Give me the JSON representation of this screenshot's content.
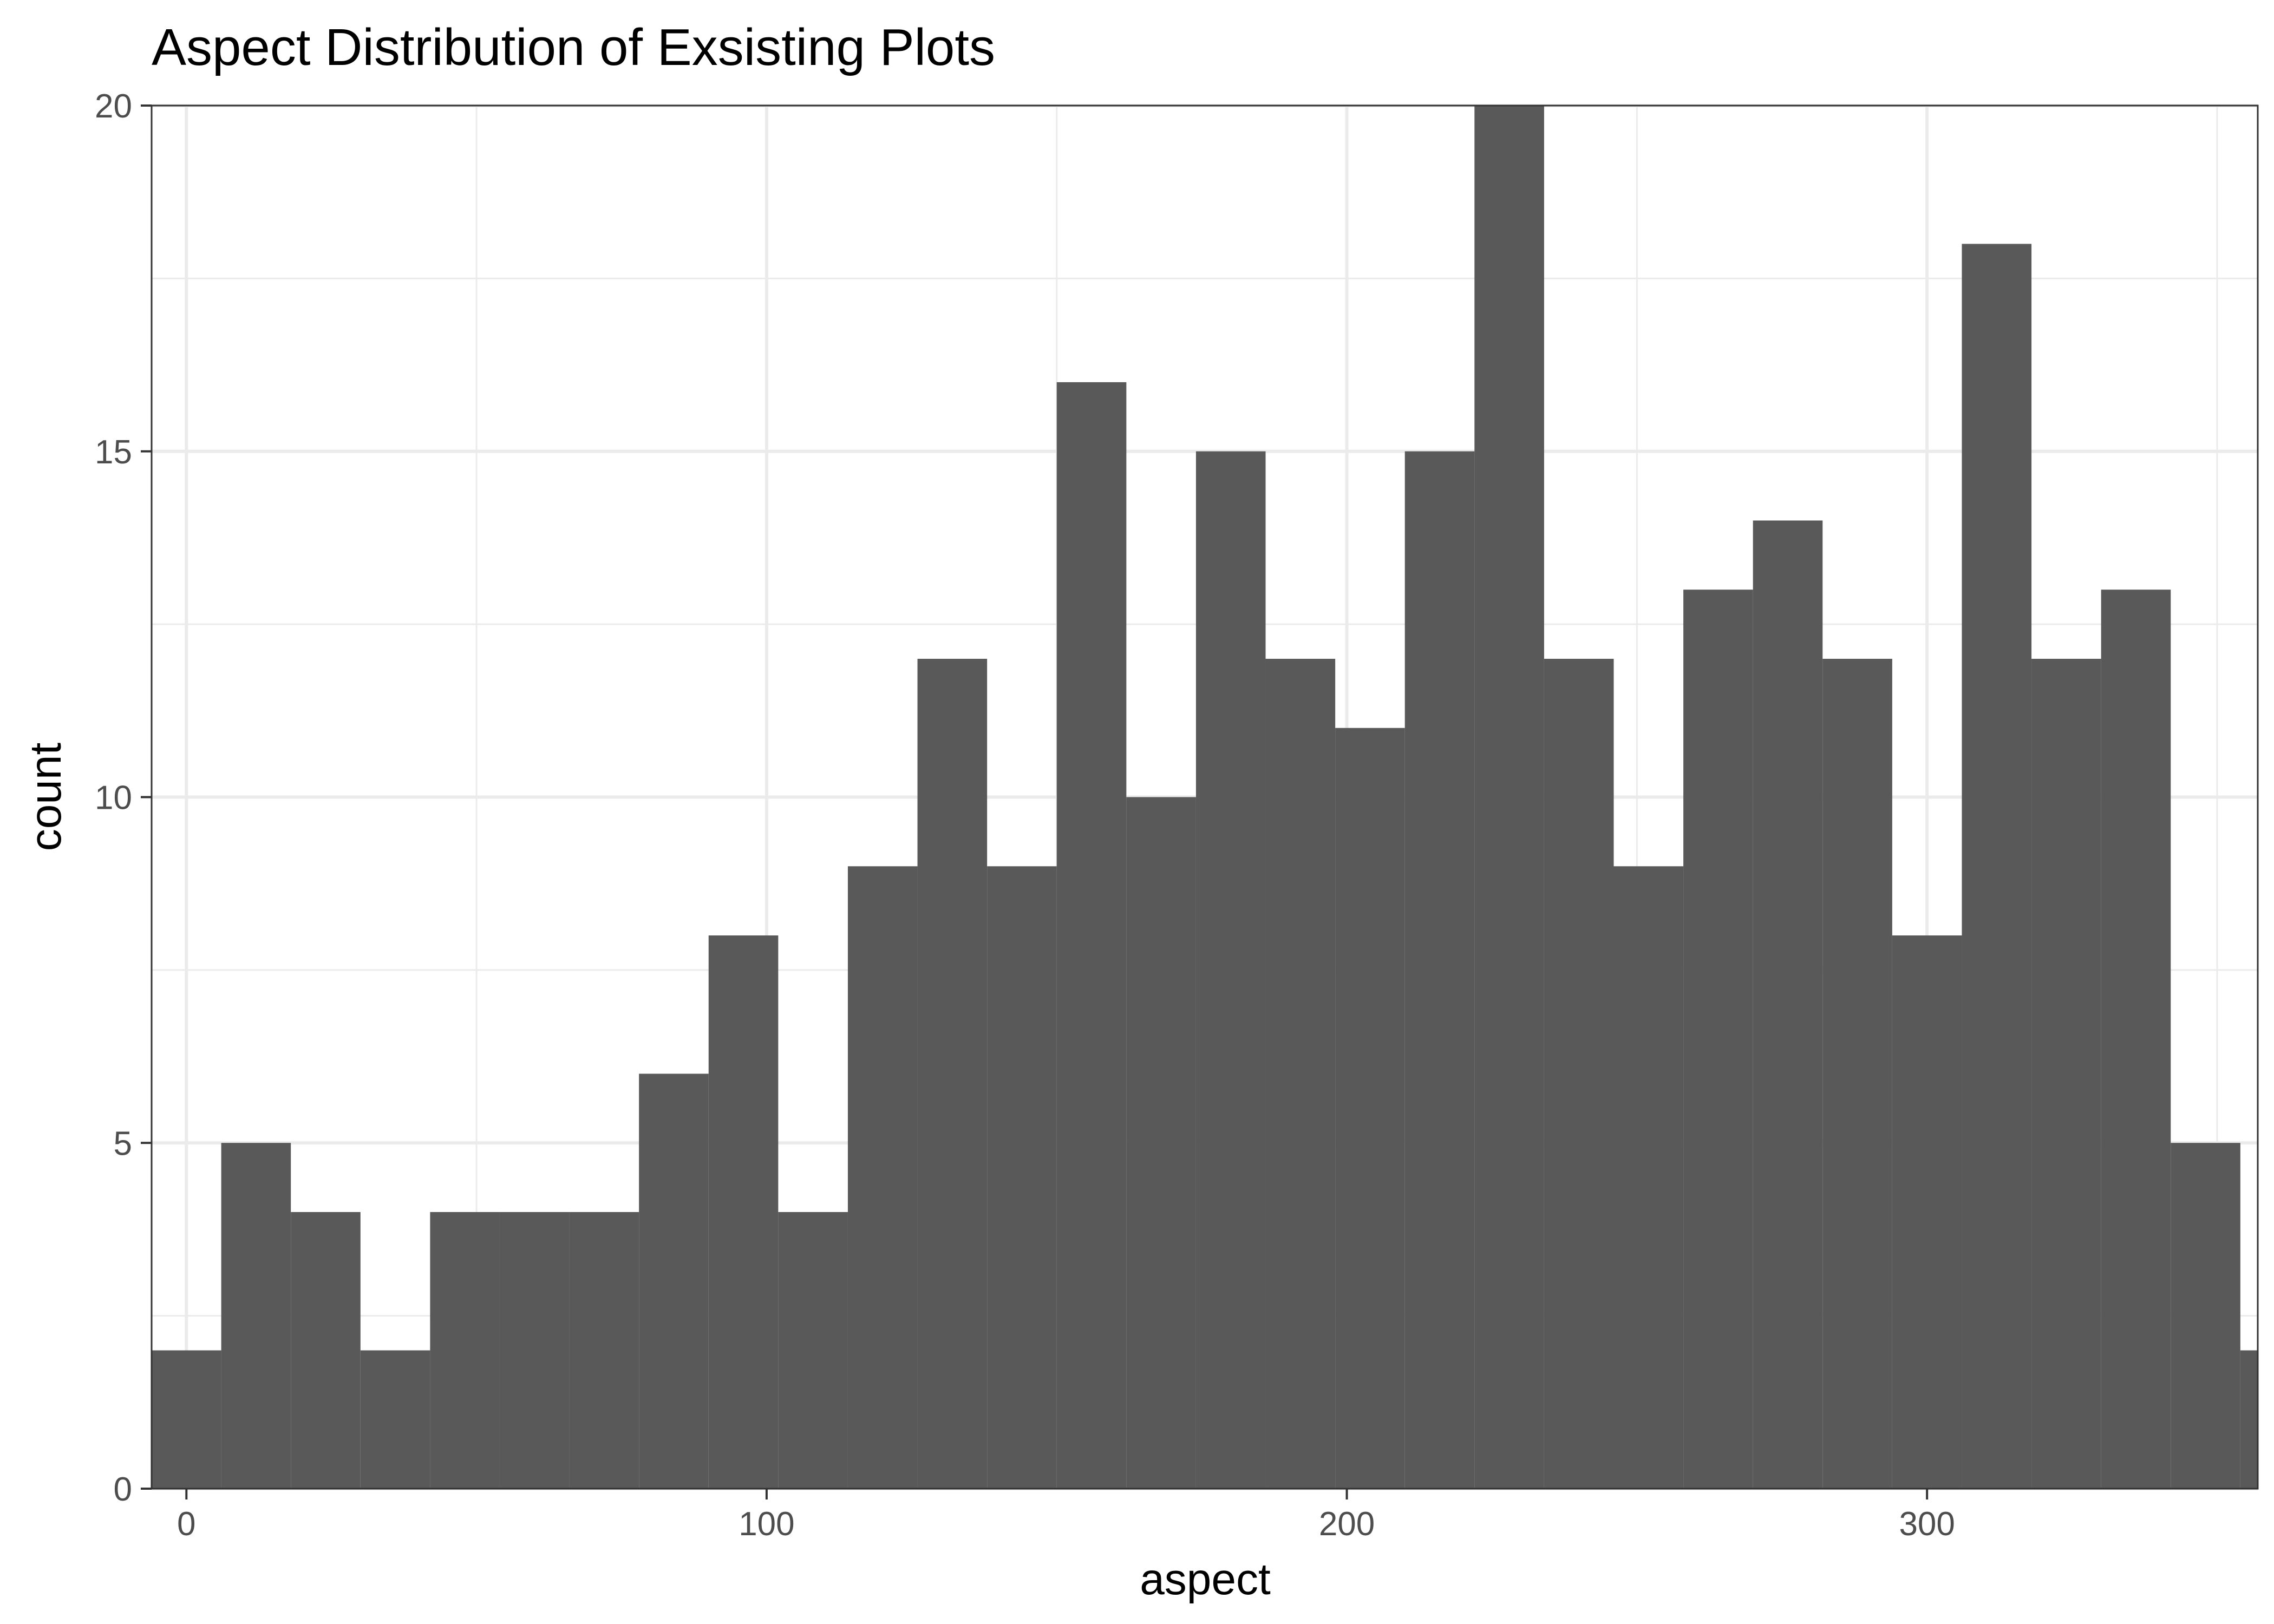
{
  "chart_data": {
    "type": "bar",
    "title": "Aspect Distribution of Exsisting Plots",
    "xlabel": "aspect",
    "ylabel": "count",
    "bin_width": 12,
    "x": [
      0,
      12,
      24,
      36,
      48,
      60,
      72,
      84,
      96,
      108,
      120,
      132,
      144,
      156,
      168,
      180,
      192,
      204,
      216,
      228,
      240,
      252,
      264,
      276,
      288,
      300,
      312,
      324,
      336,
      348,
      360
    ],
    "values": [
      2,
      5,
      4,
      2,
      4,
      4,
      4,
      6,
      8,
      4,
      9,
      12,
      9,
      16,
      10,
      15,
      12,
      11,
      15,
      20,
      12,
      9,
      13,
      14,
      12,
      8,
      18,
      12,
      13,
      5,
      2
    ],
    "xlim": [
      -6,
      357
    ],
    "ylim": [
      0,
      20
    ],
    "x_ticks": [
      0,
      100,
      200,
      300
    ],
    "y_ticks": [
      0,
      5,
      10,
      15,
      20
    ],
    "x_tick_labels": [
      "0",
      "100",
      "200",
      "300"
    ],
    "y_tick_labels": [
      "0",
      "5",
      "10",
      "15",
      "20"
    ],
    "bar_color": "#595959",
    "grid": true,
    "grid_color": "#ebebeb",
    "panel_border_color": "#333333"
  }
}
